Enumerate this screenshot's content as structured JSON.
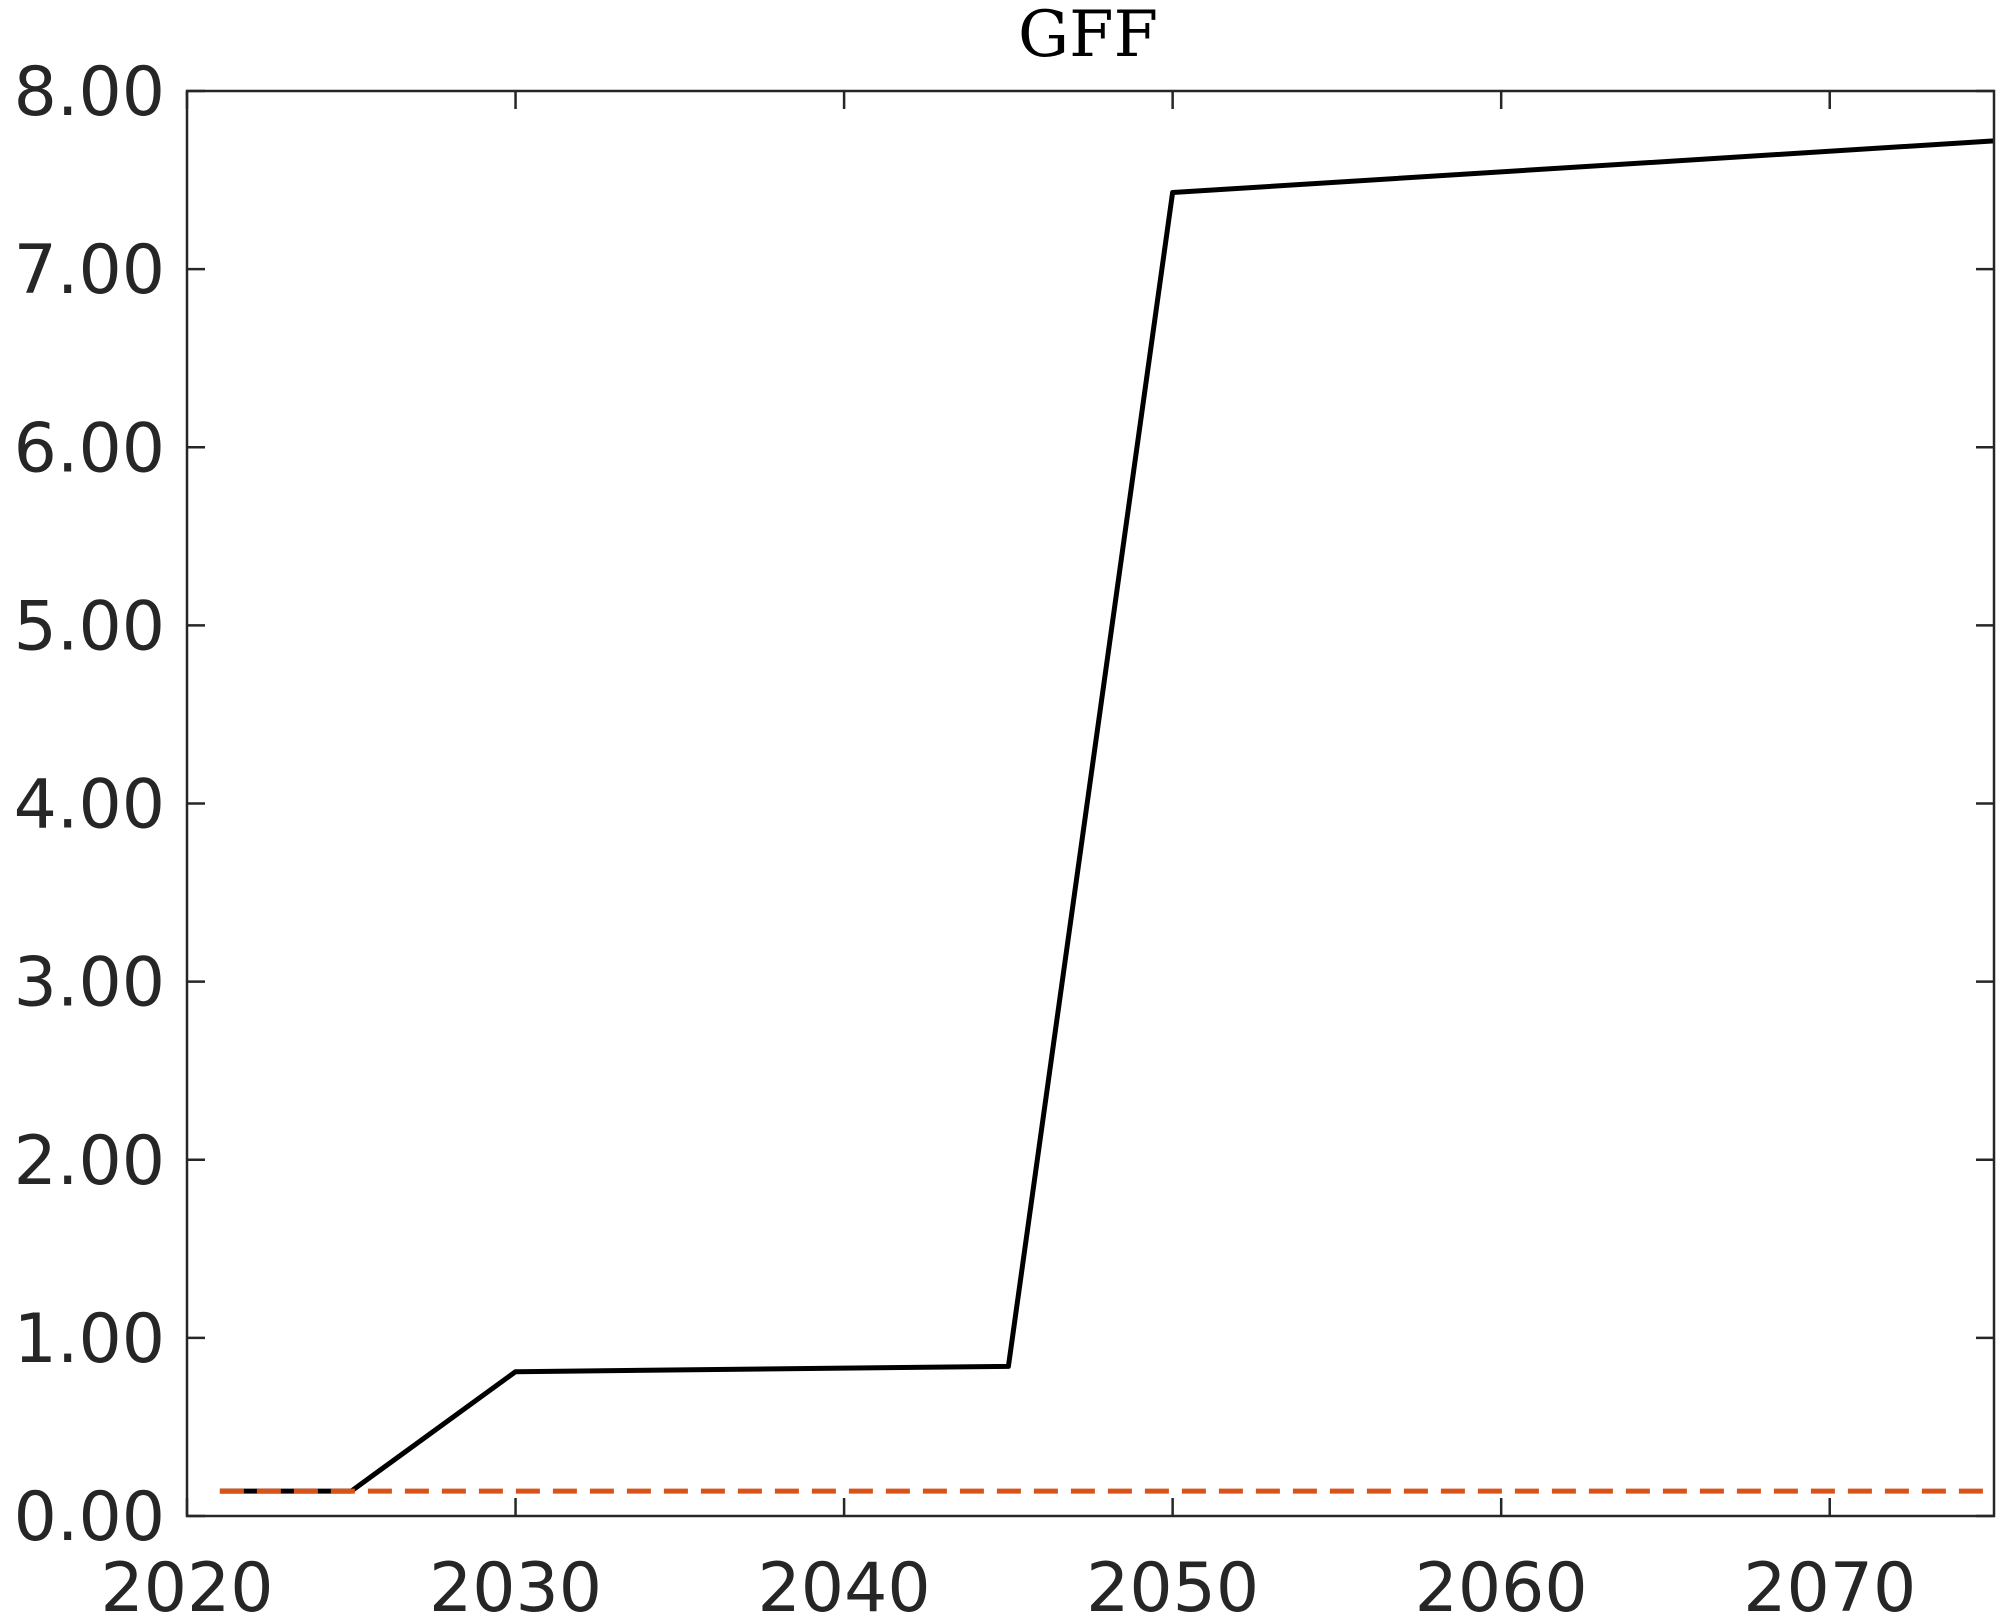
{
  "chart_data": {
    "type": "line",
    "title": "GFF",
    "xlabel": "",
    "ylabel": "",
    "xlim": [
      2020,
      2075
    ],
    "ylim": [
      0,
      8
    ],
    "grid": false,
    "legend": "none",
    "x_ticks": [
      2020,
      2030,
      2040,
      2050,
      2060,
      2070
    ],
    "y_ticks": [
      0,
      1,
      2,
      3,
      4,
      5,
      6,
      7,
      8
    ],
    "x_tick_labels": [
      "2020",
      "2030",
      "2040",
      "2050",
      "2060",
      "2070"
    ],
    "y_tick_labels": [
      "0.00",
      "1.00",
      "2.00",
      "3.00",
      "4.00",
      "5.00",
      "6.00",
      "7.00",
      "8.00"
    ],
    "series": [
      {
        "color": "#000000",
        "style": "solid",
        "x": [
          2021,
          2025,
          2030,
          2045,
          2050,
          2075
        ],
        "y": [
          0.14,
          0.14,
          0.81,
          0.84,
          7.43,
          7.72
        ]
      },
      {
        "color": "#d95319",
        "style": "dashed",
        "x": [
          2021,
          2075
        ],
        "y": [
          0.14,
          0.14
        ]
      }
    ]
  }
}
